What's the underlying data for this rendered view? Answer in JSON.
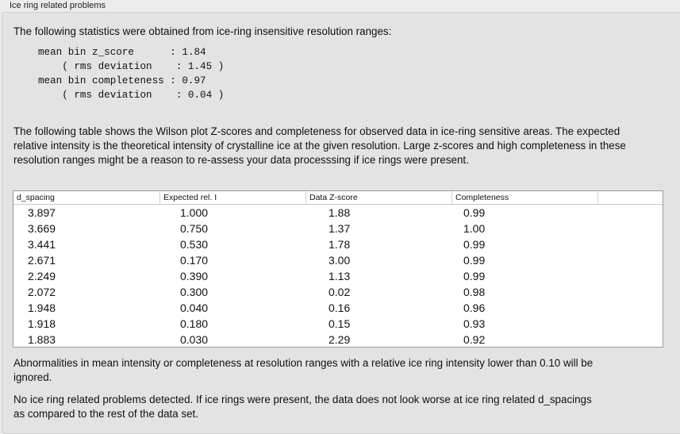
{
  "title": "Ice ring related problems",
  "intro": "The following statistics were obtained from ice-ring insensitive resolution ranges:",
  "stats": "mean bin z_score      : 1.84\n    ( rms deviation    : 1.45 )\nmean bin completeness : 0.97\n    ( rms deviation    : 0.04 )",
  "table_intro": "The following table shows the Wilson plot Z-scores and completeness for observed data in ice-ring sensitive areas. The expected relative intensity is the theoretical intensity of crystalline ice at the given resolution. Large z-scores and high completeness in these resolution ranges might be a reason to re-assess your data processsing if ice rings were present.",
  "table": {
    "headers": [
      "d_spacing",
      "Expected rel. I",
      "Data Z-score",
      "Completeness"
    ],
    "rows": [
      [
        "3.897",
        "1.000",
        "1.88",
        "0.99"
      ],
      [
        "3.669",
        "0.750",
        "1.37",
        "1.00"
      ],
      [
        "3.441",
        "0.530",
        "1.78",
        "0.99"
      ],
      [
        "2.671",
        "0.170",
        "3.00",
        "0.99"
      ],
      [
        "2.249",
        "0.390",
        "1.13",
        "0.99"
      ],
      [
        "2.072",
        "0.300",
        "0.02",
        "0.98"
      ],
      [
        "1.948",
        "0.040",
        "0.16",
        "0.96"
      ],
      [
        "1.918",
        "0.180",
        "0.15",
        "0.93"
      ],
      [
        "1.883",
        "0.030",
        "2.29",
        "0.92"
      ]
    ]
  },
  "note1": "Abnormalities in mean intensity or completeness at resolution ranges with a relative ice ring intensity lower than 0.10 will be ignored.",
  "note2": "No ice ring related problems detected. If ice rings were present, the data does not look worse at ice ring related d_spacings as compared to the rest of the data set."
}
